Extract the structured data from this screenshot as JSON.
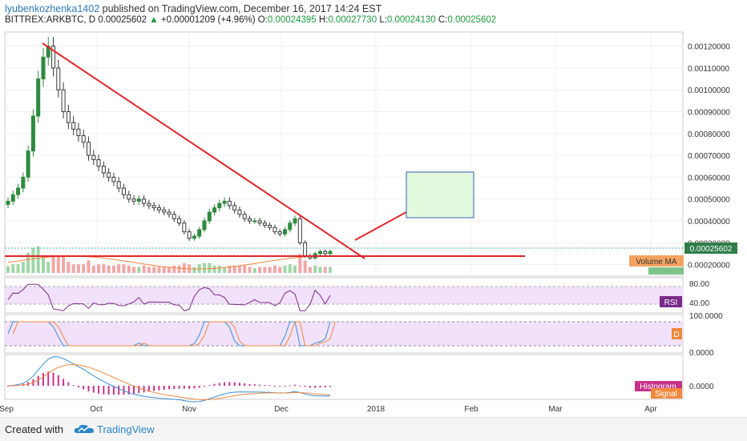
{
  "header": {
    "author": "lyubenkozhenka1402",
    "published_text": "published on TradingView.com, December 16, 2017 14:24 EST"
  },
  "quote": {
    "symbol": "BITTREX:ARKBTC, D",
    "last": "0.00025602",
    "change": "+0.00001209 (+4.96%)",
    "open_label": "O:",
    "open": "0.00024395",
    "high_label": "H:",
    "high": "0.00027730",
    "low_label": "L:",
    "low": "0.00024130",
    "close_label": "C:",
    "close": "0.00025602"
  },
  "colors": {
    "up": "#2f8a3f",
    "down": "#3a3a3a",
    "trend": "#e1262b",
    "rsi": "#7a2a8a",
    "stoch_k": "#3a8fd8",
    "stoch_d": "#f0883c",
    "macd": "#3a8fd8",
    "signal": "#f0883c",
    "hist": "#c8338a",
    "panel_fill": "#f1e1fb",
    "target_box": "#e3f9dd",
    "target_border": "#3561b3"
  },
  "chart_data": {
    "type": "candlestick",
    "price_axis": [
      "0.00120000",
      "0.00110000",
      "0.00100000",
      "0.00090000",
      "0.00080000",
      "0.00070000",
      "0.00060000",
      "0.00050000",
      "0.00040000",
      "0.00030000",
      "0.00020000"
    ],
    "price_label": "0.00025602",
    "ylim": [
      0.00018,
      0.00127
    ],
    "time_axis": [
      "Sep",
      "Oct",
      "Nov",
      "Dec",
      "2018",
      "Feb",
      "Mar",
      "Apr"
    ],
    "series_close_approx": [
      0.00049,
      0.00052,
      0.00055,
      0.0006,
      0.00072,
      0.00088,
      0.00105,
      0.00115,
      0.0012,
      0.0011,
      0.001,
      0.0009,
      0.00085,
      0.00082,
      0.00079,
      0.00076,
      0.0007,
      0.00068,
      0.00065,
      0.00062,
      0.0006,
      0.00058,
      0.00055,
      0.00052,
      0.0005,
      0.00049,
      0.0005,
      0.00048,
      0.00047,
      0.00046,
      0.00045,
      0.00044,
      0.00043,
      0.00041,
      0.00039,
      0.00035,
      0.00032,
      0.00033,
      0.00036,
      0.0004,
      0.00044,
      0.00046,
      0.00048,
      0.00049,
      0.00047,
      0.00045,
      0.00043,
      0.00041,
      0.0004,
      0.0004,
      0.00039,
      0.00038,
      0.00037,
      0.00035,
      0.00034,
      0.00036,
      0.00039,
      0.00041,
      0.0003,
      0.00024,
      0.00023,
      0.00025,
      0.00026,
      0.00025,
      0.00026
    ],
    "panels": {
      "volume_legend": "Volume MA",
      "rsi_label": "RSI",
      "rsi_axis": [
        "80.00",
        "40.00"
      ],
      "stoch_label": "D",
      "stoch_axis": [
        "100.0000",
        "0.0000"
      ],
      "macd_axis": [
        "0.0000"
      ],
      "macd_hist_label": "Histogram",
      "macd_signal_label": "Signal"
    },
    "annotations": [
      "descending trendline",
      "horizontal support line",
      "projected upward arrow",
      "target zone rectangle"
    ]
  },
  "footer": {
    "created": "Created with",
    "brand": "TradingView"
  }
}
